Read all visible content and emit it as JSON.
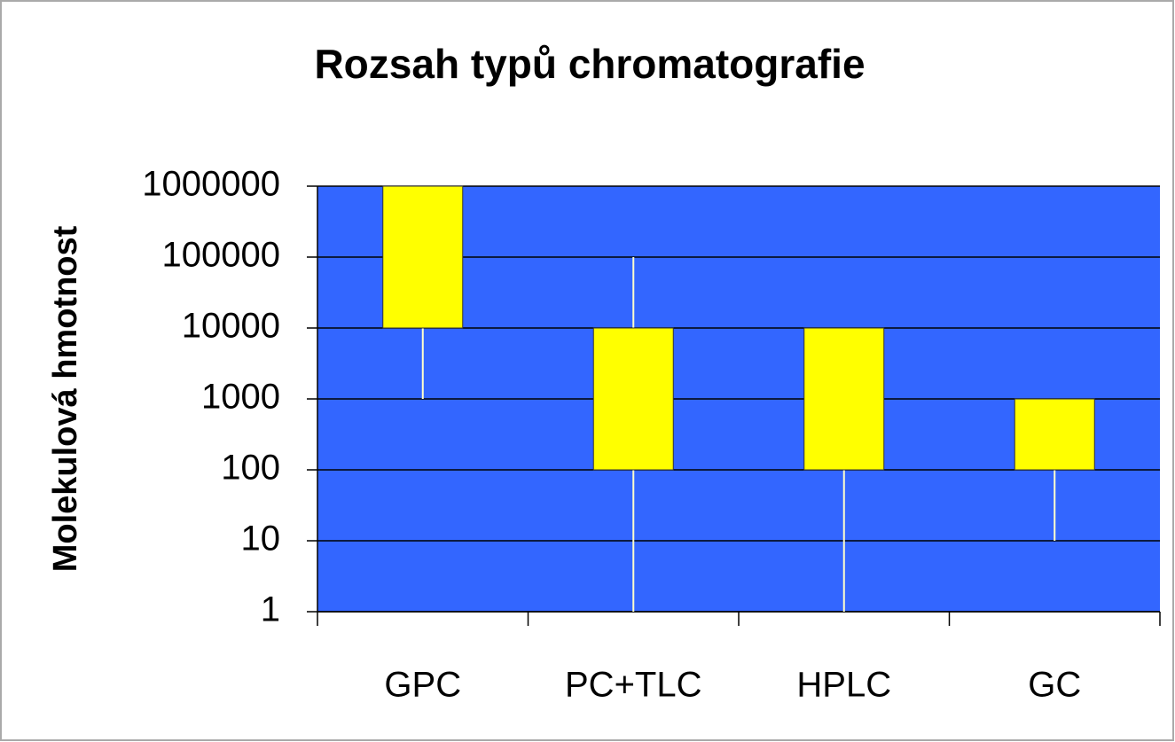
{
  "chart_data": {
    "type": "box",
    "title": "Rozsah typů chromatografie",
    "y_label": "Molekulová hmotnost",
    "categories": [
      "GPC",
      "PC+TLC",
      "HPLC",
      "GC"
    ],
    "boxes": [
      {
        "whisker_low": 1000,
        "box_low": 10000,
        "box_high": 1000000,
        "whisker_high": 1000000
      },
      {
        "whisker_low": 1,
        "box_low": 100,
        "box_high": 10000,
        "whisker_high": 100000
      },
      {
        "whisker_low": 1,
        "box_low": 100,
        "box_high": 10000,
        "whisker_high": 10000
      },
      {
        "whisker_low": 10,
        "box_low": 100,
        "box_high": 1000,
        "whisker_high": 1000
      }
    ],
    "box_color": "#ffff00",
    "whisker_color": "#ffffcc",
    "plot_background": "#3366ff",
    "log_scale": true,
    "grid": true,
    "ylim": [
      1,
      1000000
    ],
    "yticks": [
      1,
      10,
      100,
      1000,
      10000,
      100000,
      1000000
    ]
  }
}
